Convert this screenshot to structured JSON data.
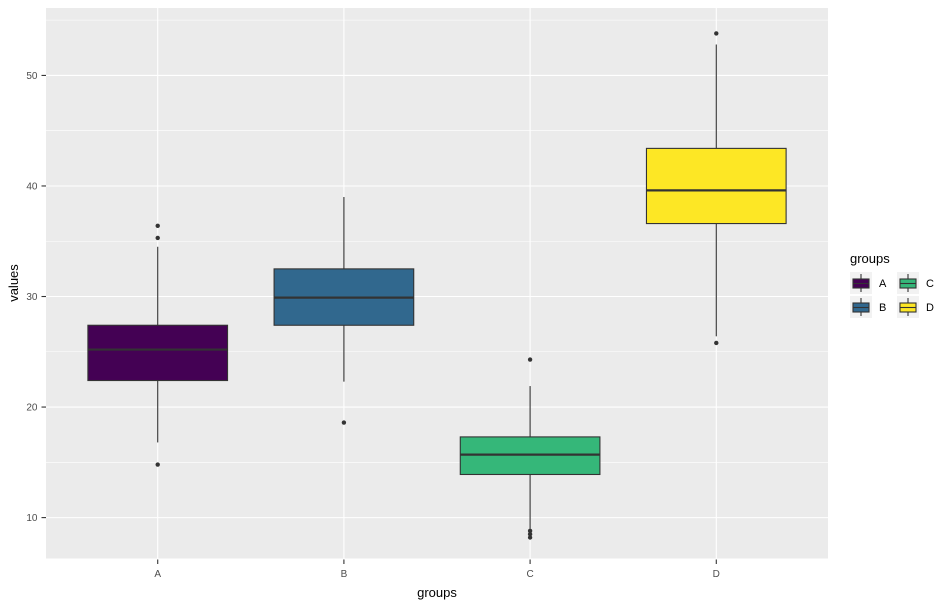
{
  "chart_data": {
    "type": "boxplot",
    "title": "",
    "xlabel": "groups",
    "ylabel": "values",
    "categories": [
      "A",
      "B",
      "C",
      "D"
    ],
    "series": [
      {
        "name": "A",
        "color": "#440154",
        "whisker_low": 16.8,
        "q1": 22.4,
        "median": 25.2,
        "q3": 27.4,
        "whisker_high": 34.5,
        "outliers": [
          14.8,
          35.3,
          36.4
        ]
      },
      {
        "name": "B",
        "color": "#31688E",
        "whisker_low": 22.3,
        "q1": 27.4,
        "median": 29.9,
        "q3": 32.5,
        "whisker_high": 39.0,
        "outliers": [
          18.6
        ]
      },
      {
        "name": "C",
        "color": "#35B779",
        "whisker_low": 9.0,
        "q1": 13.9,
        "median": 15.7,
        "q3": 17.3,
        "whisker_high": 21.9,
        "outliers": [
          8.2,
          8.5,
          8.8,
          24.3
        ]
      },
      {
        "name": "D",
        "color": "#FDE725",
        "whisker_low": 26.4,
        "q1": 36.6,
        "median": 39.6,
        "q3": 43.4,
        "whisker_high": 52.8,
        "outliers": [
          25.8,
          53.8
        ]
      }
    ],
    "y_ticks": [
      10,
      20,
      30,
      40,
      50
    ],
    "y_minor_ticks": [
      15,
      25,
      35,
      45,
      55
    ],
    "y_range": [
      6.3,
      56.1
    ],
    "grid": "major+minor horizontal white, major vertical at categories",
    "legend": {
      "title": "groups",
      "position": "right",
      "entries": [
        {
          "label": "A",
          "color": "#440154"
        },
        {
          "label": "B",
          "color": "#31688E"
        },
        {
          "label": "C",
          "color": "#35B779"
        },
        {
          "label": "D",
          "color": "#FDE725"
        }
      ]
    },
    "colors": {
      "panel_bg": "#EBEBEB",
      "grid": "#FFFFFF",
      "stroke": "#333333",
      "tick_label": "#4D4D4D",
      "legend_key_bg": "#F2F2F2"
    }
  }
}
